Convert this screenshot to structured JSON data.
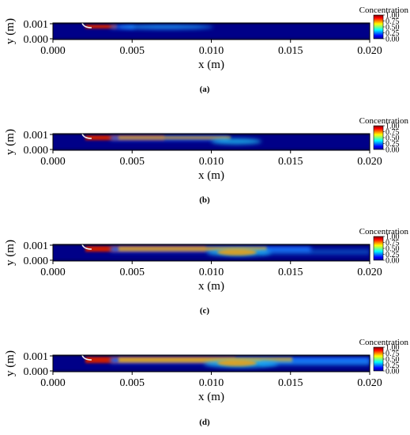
{
  "figure": {
    "panels": [
      {
        "caption": "(a)",
        "plume_extent": 0.0
      },
      {
        "caption": "(b)",
        "plume_extent": 0.4
      },
      {
        "caption": "(c)",
        "plume_extent": 0.75
      },
      {
        "caption": "(d)",
        "plume_extent": 1.0
      }
    ]
  },
  "chart_data": [
    {
      "type": "heatmap",
      "caption": "(a)",
      "xlabel": "x (m)",
      "ylabel": "y (m)",
      "xticks": [
        "0.000",
        "0.005",
        "0.010",
        "0.015",
        "0.020"
      ],
      "yticks": [
        "0.000",
        "0.001"
      ],
      "xlim": [
        0.0,
        0.02
      ],
      "ylim": [
        0.0,
        0.001
      ],
      "colorbar": {
        "title": "Concentration",
        "ticks": [
          "1.00",
          "0.75",
          "0.50",
          "0.25",
          "0.00"
        ],
        "range": [
          0.0,
          1.0
        ],
        "colormap": "jet"
      }
    },
    {
      "type": "heatmap",
      "caption": "(b)",
      "xlabel": "x (m)",
      "ylabel": "y (m)",
      "xticks": [
        "0.000",
        "0.005",
        "0.010",
        "0.015",
        "0.020"
      ],
      "yticks": [
        "0.000",
        "0.001"
      ],
      "xlim": [
        0.0,
        0.02
      ],
      "ylim": [
        0.0,
        0.001
      ],
      "colorbar": {
        "title": "Concentration",
        "ticks": [
          "1.00",
          "0.75",
          "0.50",
          "0.25",
          "0.00"
        ],
        "range": [
          0.0,
          1.0
        ],
        "colormap": "jet"
      }
    },
    {
      "type": "heatmap",
      "caption": "(c)",
      "xlabel": "x (m)",
      "ylabel": "y (m)",
      "xticks": [
        "0.000",
        "0.005",
        "0.010",
        "0.015",
        "0.020"
      ],
      "yticks": [
        "0.000",
        "0.001"
      ],
      "xlim": [
        0.0,
        0.02
      ],
      "ylim": [
        0.0,
        0.001
      ],
      "colorbar": {
        "title": "Concentration",
        "ticks": [
          "1.00",
          "0.75",
          "0.50",
          "0.25",
          "0.00"
        ],
        "range": [
          0.0,
          1.0
        ],
        "colormap": "jet"
      }
    },
    {
      "type": "heatmap",
      "caption": "(d)",
      "xlabel": "x (m)",
      "ylabel": "y (m)",
      "xticks": [
        "0.000",
        "0.005",
        "0.010",
        "0.015",
        "0.020"
      ],
      "yticks": [
        "0.000",
        "0.001"
      ],
      "xlim": [
        0.0,
        0.02
      ],
      "ylim": [
        0.0,
        0.001
      ],
      "colorbar": {
        "title": "Concentration",
        "ticks": [
          "1.00",
          "0.75",
          "0.50",
          "0.25",
          "0.00"
        ],
        "range": [
          0.0,
          1.0
        ],
        "colormap": "jet"
      }
    }
  ]
}
